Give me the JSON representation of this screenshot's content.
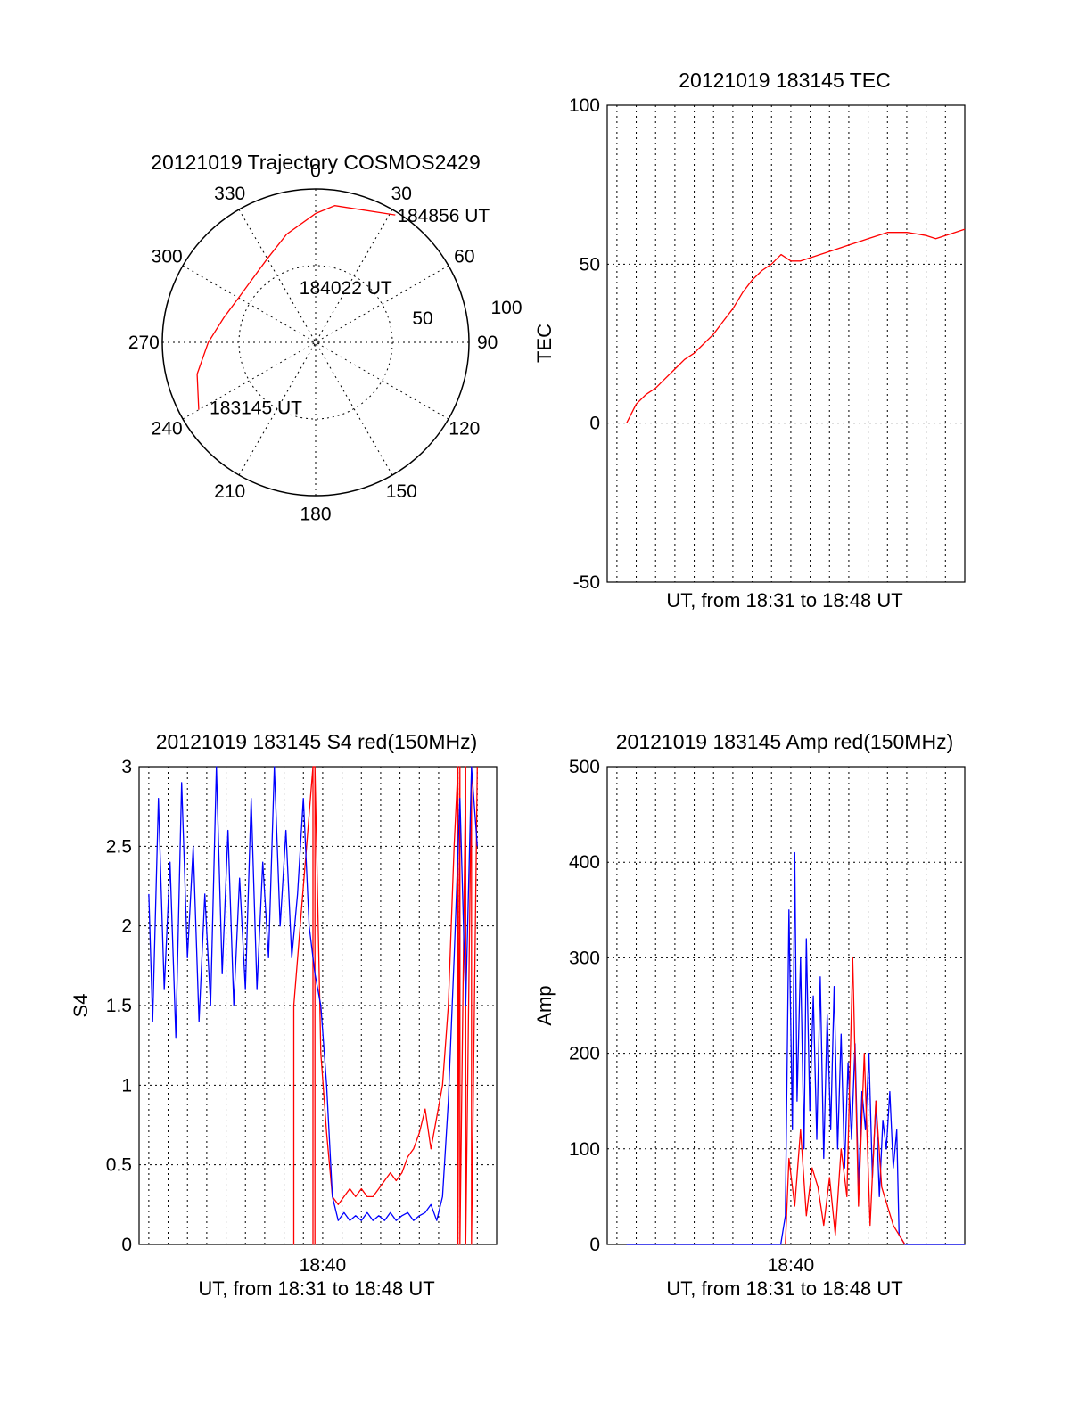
{
  "figure": {
    "background": "#ffffff",
    "colors": {
      "red": "#ff0000",
      "blue": "#0000ff",
      "axis": "#000000"
    }
  },
  "chart_data": [
    {
      "id": "trajectory",
      "type": "polar",
      "title": "20121019 Trajectory COSMOS2429",
      "angle_ticks": [
        "0",
        "30",
        "60",
        "90",
        "120",
        "150",
        "180",
        "210",
        "240",
        "270",
        "300",
        "330"
      ],
      "radial_ticks": [
        "50",
        "100"
      ],
      "series": [
        {
          "color": "#ff0000",
          "points": [
            {
              "az": 240,
              "zen": 88
            },
            {
              "az": 255,
              "zen": 80
            },
            {
              "az": 270,
              "zen": 70
            },
            {
              "az": 285,
              "zen": 62
            },
            {
              "az": 300,
              "zen": 58
            },
            {
              "az": 312,
              "zen": 58
            },
            {
              "az": 330,
              "zen": 63
            },
            {
              "az": 345,
              "zen": 73
            },
            {
              "az": 0,
              "zen": 84
            },
            {
              "az": 8,
              "zen": 90
            },
            {
              "az": 32,
              "zen": 98
            }
          ]
        }
      ],
      "annotations": [
        {
          "text": "184856 UT",
          "az": 32,
          "zen": 98
        },
        {
          "text": "184022 UT",
          "az": 342,
          "zen": 38
        },
        {
          "text": "183145 UT",
          "az": 239,
          "zen": 82
        }
      ]
    },
    {
      "id": "tec",
      "type": "line",
      "title": "20121019 183145 TEC",
      "xlabel": "UT, from 18:31 to 18:48 UT",
      "ylabel": "TEC",
      "xlim": [
        18.5083,
        18.8167
      ],
      "ylim": [
        -50,
        100
      ],
      "yticks": [
        "-50",
        "0",
        "50",
        "100"
      ],
      "xticks": [],
      "grid": true,
      "series": [
        {
          "color": "#ff0000",
          "x": [
            18.525,
            18.5333,
            18.5417,
            18.55,
            18.5583,
            18.5667,
            18.575,
            18.5833,
            18.5917,
            18.6,
            18.6083,
            18.6167,
            18.625,
            18.6333,
            18.6417,
            18.65,
            18.6583,
            18.6667,
            18.675,
            18.6833,
            18.6917,
            18.7,
            18.7083,
            18.7167,
            18.725,
            18.7333,
            18.7417,
            18.75,
            18.7583,
            18.7667,
            18.775,
            18.7833,
            18.7917,
            18.8,
            18.8083,
            18.8167
          ],
          "y": [
            0,
            6,
            9,
            11,
            14,
            17,
            20,
            22,
            25,
            28,
            32,
            36,
            41,
            45,
            48,
            50,
            53,
            51,
            51,
            52,
            53,
            54,
            55,
            56,
            57,
            58,
            59,
            60,
            60,
            60,
            59.5,
            59,
            58,
            59,
            60,
            61
          ]
        }
      ]
    },
    {
      "id": "s4",
      "type": "line",
      "title": "20121019 183145 S4 red(150MHz)",
      "xlabel": "UT, from 18:31 to 18:48 UT",
      "ylabel": "S4",
      "xlim": [
        18.5083,
        18.8167
      ],
      "ylim": [
        0,
        3
      ],
      "yticks": [
        "0",
        "0.5",
        "1",
        "1.5",
        "2",
        "2.5",
        "3"
      ],
      "xticks": [
        {
          "value": 18.6667,
          "label": "18:40"
        }
      ],
      "grid": true,
      "series": [
        {
          "color": "#ff0000",
          "x": [
            18.6417,
            18.6417,
            18.6417,
            18.6583,
            18.6583,
            18.6583,
            18.66,
            18.66,
            18.66,
            18.665,
            18.67,
            18.675,
            18.68,
            18.685,
            18.69,
            18.695,
            18.7,
            18.705,
            18.71,
            18.715,
            18.72,
            18.725,
            18.73,
            18.735,
            18.74,
            18.745,
            18.75,
            18.755,
            18.76,
            18.765,
            18.77,
            18.775,
            18.78,
            18.7833,
            18.7833,
            18.785,
            18.785,
            18.79,
            18.79,
            18.795,
            18.795,
            18.8
          ],
          "y": [
            1.5,
            0,
            1.5,
            3,
            0,
            3,
            3,
            0,
            3,
            1.2,
            0.7,
            0.3,
            0.25,
            0.3,
            0.35,
            0.3,
            0.35,
            0.3,
            0.3,
            0.35,
            0.4,
            0.45,
            0.4,
            0.45,
            0.55,
            0.6,
            0.7,
            0.85,
            0.6,
            0.8,
            1.0,
            1.5,
            2.5,
            3,
            0,
            3,
            0,
            3,
            0,
            3,
            0,
            3
          ]
        },
        {
          "color": "#0000ff",
          "x": [
            18.5167,
            18.52,
            18.525,
            18.53,
            18.535,
            18.54,
            18.545,
            18.55,
            18.555,
            18.56,
            18.565,
            18.57,
            18.575,
            18.58,
            18.585,
            18.59,
            18.595,
            18.6,
            18.605,
            18.61,
            18.615,
            18.62,
            18.625,
            18.63,
            18.635,
            18.64,
            18.645,
            18.65,
            18.655,
            18.66,
            18.665,
            18.67,
            18.675,
            18.68,
            18.685,
            18.69,
            18.695,
            18.7,
            18.705,
            18.71,
            18.715,
            18.72,
            18.725,
            18.73,
            18.735,
            18.74,
            18.745,
            18.75,
            18.755,
            18.76,
            18.765,
            18.77,
            18.775,
            18.78,
            18.785,
            18.79,
            18.795,
            18.8
          ],
          "y": [
            2.2,
            1.4,
            2.8,
            1.6,
            2.4,
            1.3,
            2.9,
            1.8,
            2.5,
            1.4,
            2.2,
            1.5,
            3.0,
            1.7,
            2.6,
            1.5,
            2.3,
            1.6,
            2.8,
            1.6,
            2.4,
            1.8,
            3.0,
            2.0,
            2.6,
            1.8,
            2.2,
            2.8,
            2.0,
            1.7,
            1.5,
            1.0,
            0.3,
            0.15,
            0.2,
            0.15,
            0.18,
            0.15,
            0.2,
            0.15,
            0.18,
            0.15,
            0.2,
            0.15,
            0.18,
            0.2,
            0.15,
            0.18,
            0.2,
            0.25,
            0.15,
            0.3,
            0.9,
            1.8,
            2.8,
            1.5,
            3.0,
            2.5
          ]
        }
      ]
    },
    {
      "id": "amp",
      "type": "line",
      "title": "20121019 183145 Amp red(150MHz)",
      "xlabel": "UT, from 18:31 to 18:48 UT",
      "ylabel": "Amp",
      "xlim": [
        18.5083,
        18.8167
      ],
      "ylim": [
        0,
        500
      ],
      "yticks": [
        "0",
        "100",
        "200",
        "300",
        "400",
        "500"
      ],
      "xticks": [
        {
          "value": 18.6667,
          "label": "18:40"
        }
      ],
      "grid": true,
      "series": [
        {
          "color": "#0000ff",
          "x": [
            18.525,
            18.65,
            18.658,
            18.662,
            18.665,
            18.668,
            18.67,
            18.672,
            18.675,
            18.678,
            18.68,
            18.683,
            18.686,
            18.689,
            18.692,
            18.695,
            18.698,
            18.701,
            18.704,
            18.707,
            18.71,
            18.713,
            18.716,
            18.719,
            18.722,
            18.725,
            18.728,
            18.731,
            18.734,
            18.737,
            18.74,
            18.743,
            18.746,
            18.749,
            18.752,
            18.755,
            18.758,
            18.76,
            18.765,
            18.8167
          ],
          "y": [
            0,
            0,
            0,
            30,
            350,
            120,
            410,
            150,
            300,
            100,
            320,
            140,
            260,
            110,
            280,
            90,
            240,
            120,
            270,
            100,
            220,
            80,
            190,
            110,
            210,
            60,
            160,
            120,
            200,
            70,
            150,
            50,
            130,
            100,
            160,
            80,
            120,
            10,
            0,
            0
          ]
        },
        {
          "color": "#ff0000",
          "x": [
            18.662,
            18.665,
            18.67,
            18.675,
            18.68,
            18.685,
            18.69,
            18.695,
            18.7,
            18.705,
            18.71,
            18.715,
            18.72,
            18.725,
            18.73,
            18.735,
            18.74,
            18.745,
            18.75,
            18.755,
            18.76,
            18.765
          ],
          "y": [
            0,
            90,
            40,
            120,
            30,
            80,
            60,
            20,
            70,
            10,
            100,
            50,
            300,
            40,
            200,
            20,
            150,
            60,
            40,
            20,
            10,
            0
          ]
        }
      ]
    }
  ]
}
